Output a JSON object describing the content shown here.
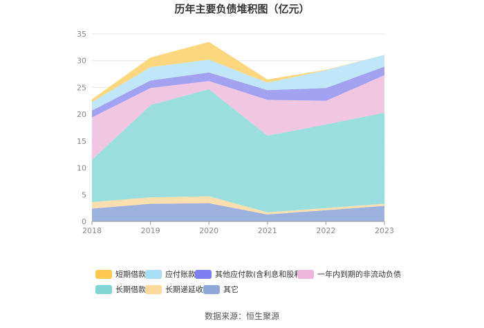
{
  "chart_data": {
    "type": "area",
    "stacked": true,
    "title": "历年主要负债堆积图（亿元）",
    "x": [
      "2018",
      "2019",
      "2020",
      "2021",
      "2022",
      "2023"
    ],
    "ylim": [
      0,
      35
    ],
    "yticks": [
      "0",
      "5",
      "10",
      "15",
      "20",
      "25",
      "30",
      "35"
    ],
    "grid": true,
    "legend_position": "bottom",
    "series": [
      {
        "name": "其它",
        "color": "#91a8d9",
        "values": [
          2.4,
          3.3,
          3.4,
          1.3,
          2.1,
          2.9
        ]
      },
      {
        "name": "长期递延收益",
        "color": "#fcdca5",
        "values": [
          1.2,
          1.2,
          1.3,
          0.4,
          0.4,
          0.4
        ]
      },
      {
        "name": "长期借款",
        "color": "#8fdada",
        "values": [
          7.9,
          17.2,
          20.0,
          14.3,
          15.6,
          17.0
        ]
      },
      {
        "name": "一年内到期的非流动负债",
        "color": "#efc0de",
        "values": [
          7.9,
          3.2,
          1.5,
          6.7,
          4.4,
          7.0
        ]
      },
      {
        "name": "其他应付款(含利息和股利)",
        "color": "#9898f0",
        "values": [
          1.3,
          1.4,
          1.6,
          1.8,
          2.4,
          1.6
        ]
      },
      {
        "name": "应付账款",
        "color": "#b8e4f8",
        "values": [
          1.6,
          2.5,
          2.4,
          1.4,
          3.3,
          2.2
        ]
      },
      {
        "name": "短期借款",
        "color": "#fdd36f",
        "values": [
          0.5,
          1.8,
          3.3,
          0.6,
          0.1,
          0.0
        ]
      }
    ]
  },
  "legend": {
    "row1": [
      "短期借款",
      "应付账款",
      "其他应付款(含利息和股利)",
      "一年内到期的非流动负债"
    ],
    "row2": [
      "长期借款",
      "长期递延收益",
      "其它"
    ]
  },
  "source": "数据来源：恒生聚源"
}
